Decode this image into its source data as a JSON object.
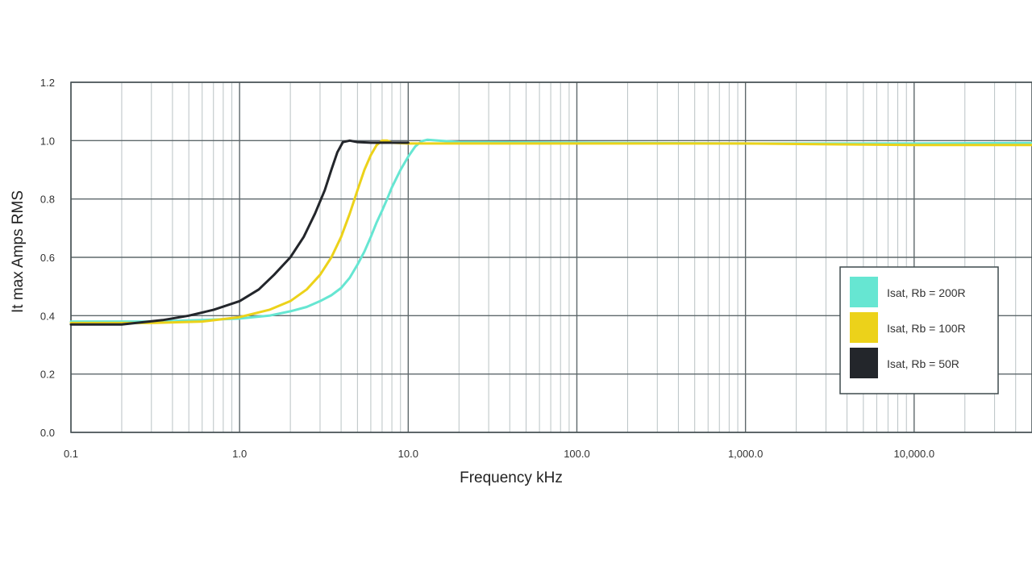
{
  "chart_data": {
    "type": "line",
    "title": "",
    "xlabel": "Frequency kHz",
    "ylabel": "It max Amps RMS",
    "x_scale": "log",
    "xlim": [
      0.1,
      50000
    ],
    "ylim": [
      0,
      1.2
    ],
    "x_ticks": [
      {
        "value": 0.1,
        "label": "0.1"
      },
      {
        "value": 1,
        "label": "1.0"
      },
      {
        "value": 10,
        "label": "10.0"
      },
      {
        "value": 100,
        "label": "100.0"
      },
      {
        "value": 1000,
        "label": "1,000.0"
      },
      {
        "value": 10000,
        "label": "10,000.0"
      }
    ],
    "y_ticks": [
      {
        "value": 0,
        "label": "0.0"
      },
      {
        "value": 0.2,
        "label": "0.2"
      },
      {
        "value": 0.4,
        "label": "0.4"
      },
      {
        "value": 0.6,
        "label": "0.6"
      },
      {
        "value": 0.8,
        "label": "0.8"
      },
      {
        "value": 1.0,
        "label": "1.0"
      },
      {
        "value": 1.2,
        "label": "1.2"
      }
    ],
    "grid": true,
    "legend_position": "right",
    "series": [
      {
        "name": "Isat, Rb = 200R",
        "color": "#66e6d2",
        "points": [
          [
            0.1,
            0.38
          ],
          [
            0.3,
            0.38
          ],
          [
            0.6,
            0.385
          ],
          [
            1.0,
            0.39
          ],
          [
            1.5,
            0.4
          ],
          [
            2.0,
            0.415
          ],
          [
            2.5,
            0.43
          ],
          [
            3.0,
            0.45
          ],
          [
            3.5,
            0.47
          ],
          [
            4.0,
            0.495
          ],
          [
            4.5,
            0.53
          ],
          [
            5.0,
            0.575
          ],
          [
            5.5,
            0.62
          ],
          [
            6.0,
            0.67
          ],
          [
            6.5,
            0.72
          ],
          [
            7.0,
            0.76
          ],
          [
            7.5,
            0.8
          ],
          [
            8.0,
            0.84
          ],
          [
            9.0,
            0.9
          ],
          [
            10.0,
            0.945
          ],
          [
            11.0,
            0.98
          ],
          [
            12.0,
            0.998
          ],
          [
            13.0,
            1.003
          ],
          [
            15.0,
            1.0
          ],
          [
            20.0,
            0.995
          ],
          [
            100,
            0.993
          ],
          [
            1000,
            0.99
          ],
          [
            10000,
            0.99
          ],
          [
            50000,
            0.992
          ]
        ]
      },
      {
        "name": "Isat, Rb = 100R",
        "color": "#ecd21a",
        "points": [
          [
            0.1,
            0.375
          ],
          [
            0.3,
            0.375
          ],
          [
            0.6,
            0.38
          ],
          [
            1.0,
            0.395
          ],
          [
            1.5,
            0.42
          ],
          [
            2.0,
            0.45
          ],
          [
            2.5,
            0.49
          ],
          [
            3.0,
            0.54
          ],
          [
            3.5,
            0.6
          ],
          [
            4.0,
            0.67
          ],
          [
            4.5,
            0.75
          ],
          [
            5.0,
            0.83
          ],
          [
            5.5,
            0.9
          ],
          [
            6.0,
            0.95
          ],
          [
            6.5,
            0.985
          ],
          [
            7.0,
            1.0
          ],
          [
            7.5,
            1.0
          ],
          [
            8.0,
            0.993
          ],
          [
            10,
            0.99
          ],
          [
            100,
            0.99
          ],
          [
            1000,
            0.99
          ],
          [
            10000,
            0.985
          ],
          [
            50000,
            0.985
          ]
        ]
      },
      {
        "name": "Isat, Rb = 50R",
        "color": "#23262b",
        "points": [
          [
            0.1,
            0.37
          ],
          [
            0.2,
            0.37
          ],
          [
            0.35,
            0.385
          ],
          [
            0.5,
            0.4
          ],
          [
            0.7,
            0.42
          ],
          [
            1.0,
            0.45
          ],
          [
            1.3,
            0.49
          ],
          [
            1.6,
            0.54
          ],
          [
            2.0,
            0.6
          ],
          [
            2.4,
            0.67
          ],
          [
            2.8,
            0.75
          ],
          [
            3.2,
            0.83
          ],
          [
            3.5,
            0.9
          ],
          [
            3.8,
            0.96
          ],
          [
            4.1,
            0.995
          ],
          [
            4.5,
            1.0
          ],
          [
            5.0,
            0.995
          ],
          [
            6.0,
            0.993
          ],
          [
            8.0,
            0.993
          ],
          [
            10.0,
            0.993
          ]
        ]
      }
    ]
  }
}
